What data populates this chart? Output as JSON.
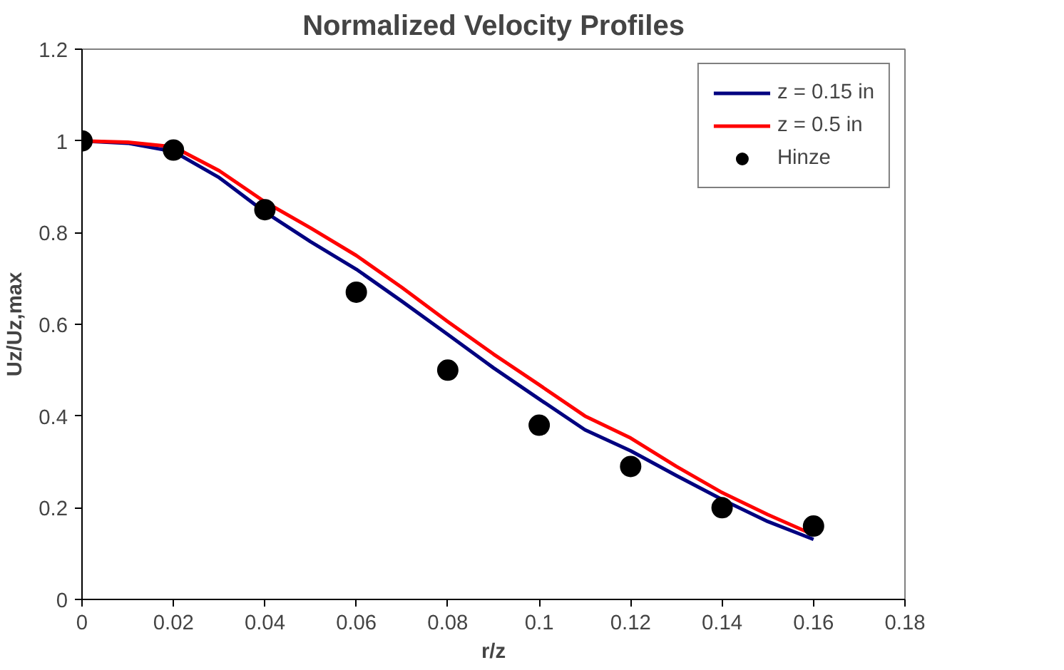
{
  "chart_data": {
    "type": "line",
    "title": "Normalized Velocity Profiles",
    "xlabel": "r/z",
    "ylabel": "Uz/Uz,max",
    "x": [
      0,
      0.01,
      0.02,
      0.03,
      0.04,
      0.05,
      0.06,
      0.07,
      0.08,
      0.09,
      0.1,
      0.11,
      0.12,
      0.13,
      0.14,
      0.15,
      0.16
    ],
    "series": [
      {
        "name": "z = 0.15 in",
        "color": "#000080",
        "values": [
          1,
          0.995,
          0.977,
          0.92,
          0.845,
          0.78,
          0.72,
          0.65,
          0.578,
          0.505,
          0.437,
          0.37,
          0.324,
          0.27,
          0.218,
          0.17,
          0.131
        ]
      },
      {
        "name": "z = 0.5 in",
        "color": "#ff0000",
        "values": [
          1,
          0.997,
          0.987,
          0.935,
          0.867,
          0.81,
          0.75,
          0.68,
          0.606,
          0.535,
          0.468,
          0.4,
          0.352,
          0.29,
          0.233,
          0.185,
          0.141
        ]
      },
      {
        "name": "Hinze",
        "type": "scatter",
        "color": "#000000",
        "marker": "circle",
        "x": [
          0,
          0.02,
          0.04,
          0.06,
          0.08,
          0.1,
          0.12,
          0.14,
          0.16
        ],
        "values": [
          1,
          0.98,
          0.85,
          0.67,
          0.5,
          0.38,
          0.29,
          0.2,
          0.16
        ]
      }
    ],
    "xlim": [
      0,
      0.18
    ],
    "xticks": [
      0,
      0.02,
      0.04,
      0.06,
      0.08,
      0.1,
      0.12,
      0.14,
      0.16,
      0.18
    ],
    "ylim": [
      0,
      1.2
    ],
    "yticks": [
      0,
      0.2,
      0.4,
      0.6,
      0.8,
      1,
      1.2
    ],
    "grid": false,
    "legend": "top right"
  }
}
